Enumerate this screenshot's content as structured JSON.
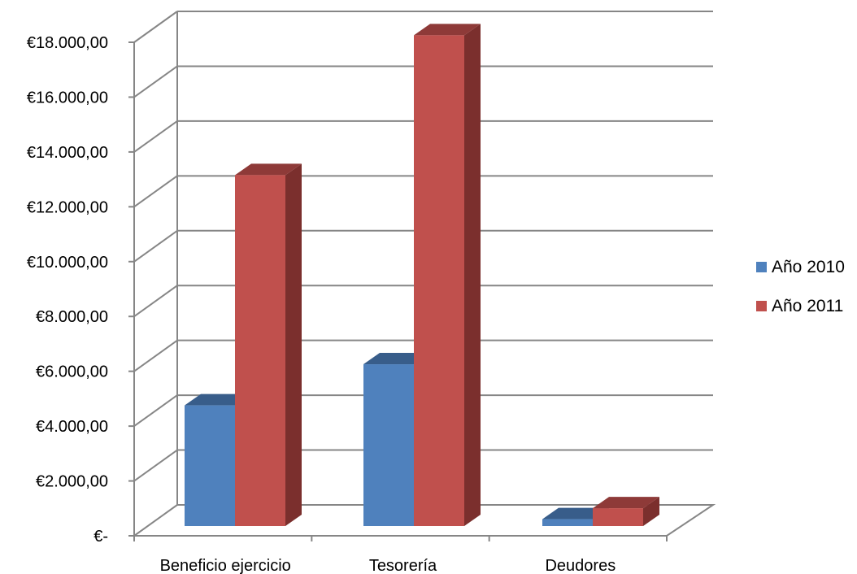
{
  "chart_data": {
    "type": "bar",
    "categories": [
      "Beneficio ejercicio",
      "Tesorería",
      "Deudores"
    ],
    "series": [
      {
        "name": "Año 2010",
        "values": [
          4400,
          5900,
          250
        ],
        "color": "#4F81BD",
        "top_color": "#385D8A",
        "side_color": "#2F4F75"
      },
      {
        "name": "Año 2011",
        "values": [
          12800,
          17900,
          650
        ],
        "color": "#C0504D",
        "top_color": "#8E3A38",
        "side_color": "#7B2F2D"
      }
    ],
    "y_ticks": [
      {
        "value": 0,
        "label": "€-"
      },
      {
        "value": 2000,
        "label": "€2.000,00"
      },
      {
        "value": 4000,
        "label": "€4.000,00"
      },
      {
        "value": 6000,
        "label": "€6.000,00"
      },
      {
        "value": 8000,
        "label": "€8.000,00"
      },
      {
        "value": 10000,
        "label": "€10.000,00"
      },
      {
        "value": 12000,
        "label": "€12.000,00"
      },
      {
        "value": 14000,
        "label": "€14.000,00"
      },
      {
        "value": 16000,
        "label": "€16.000,00"
      },
      {
        "value": 18000,
        "label": "€18.000,00"
      }
    ],
    "ylim": [
      0,
      18000
    ],
    "grid": true,
    "legend_position": "right",
    "style": "3d-clustered-column",
    "gridline_color": "#868686"
  }
}
